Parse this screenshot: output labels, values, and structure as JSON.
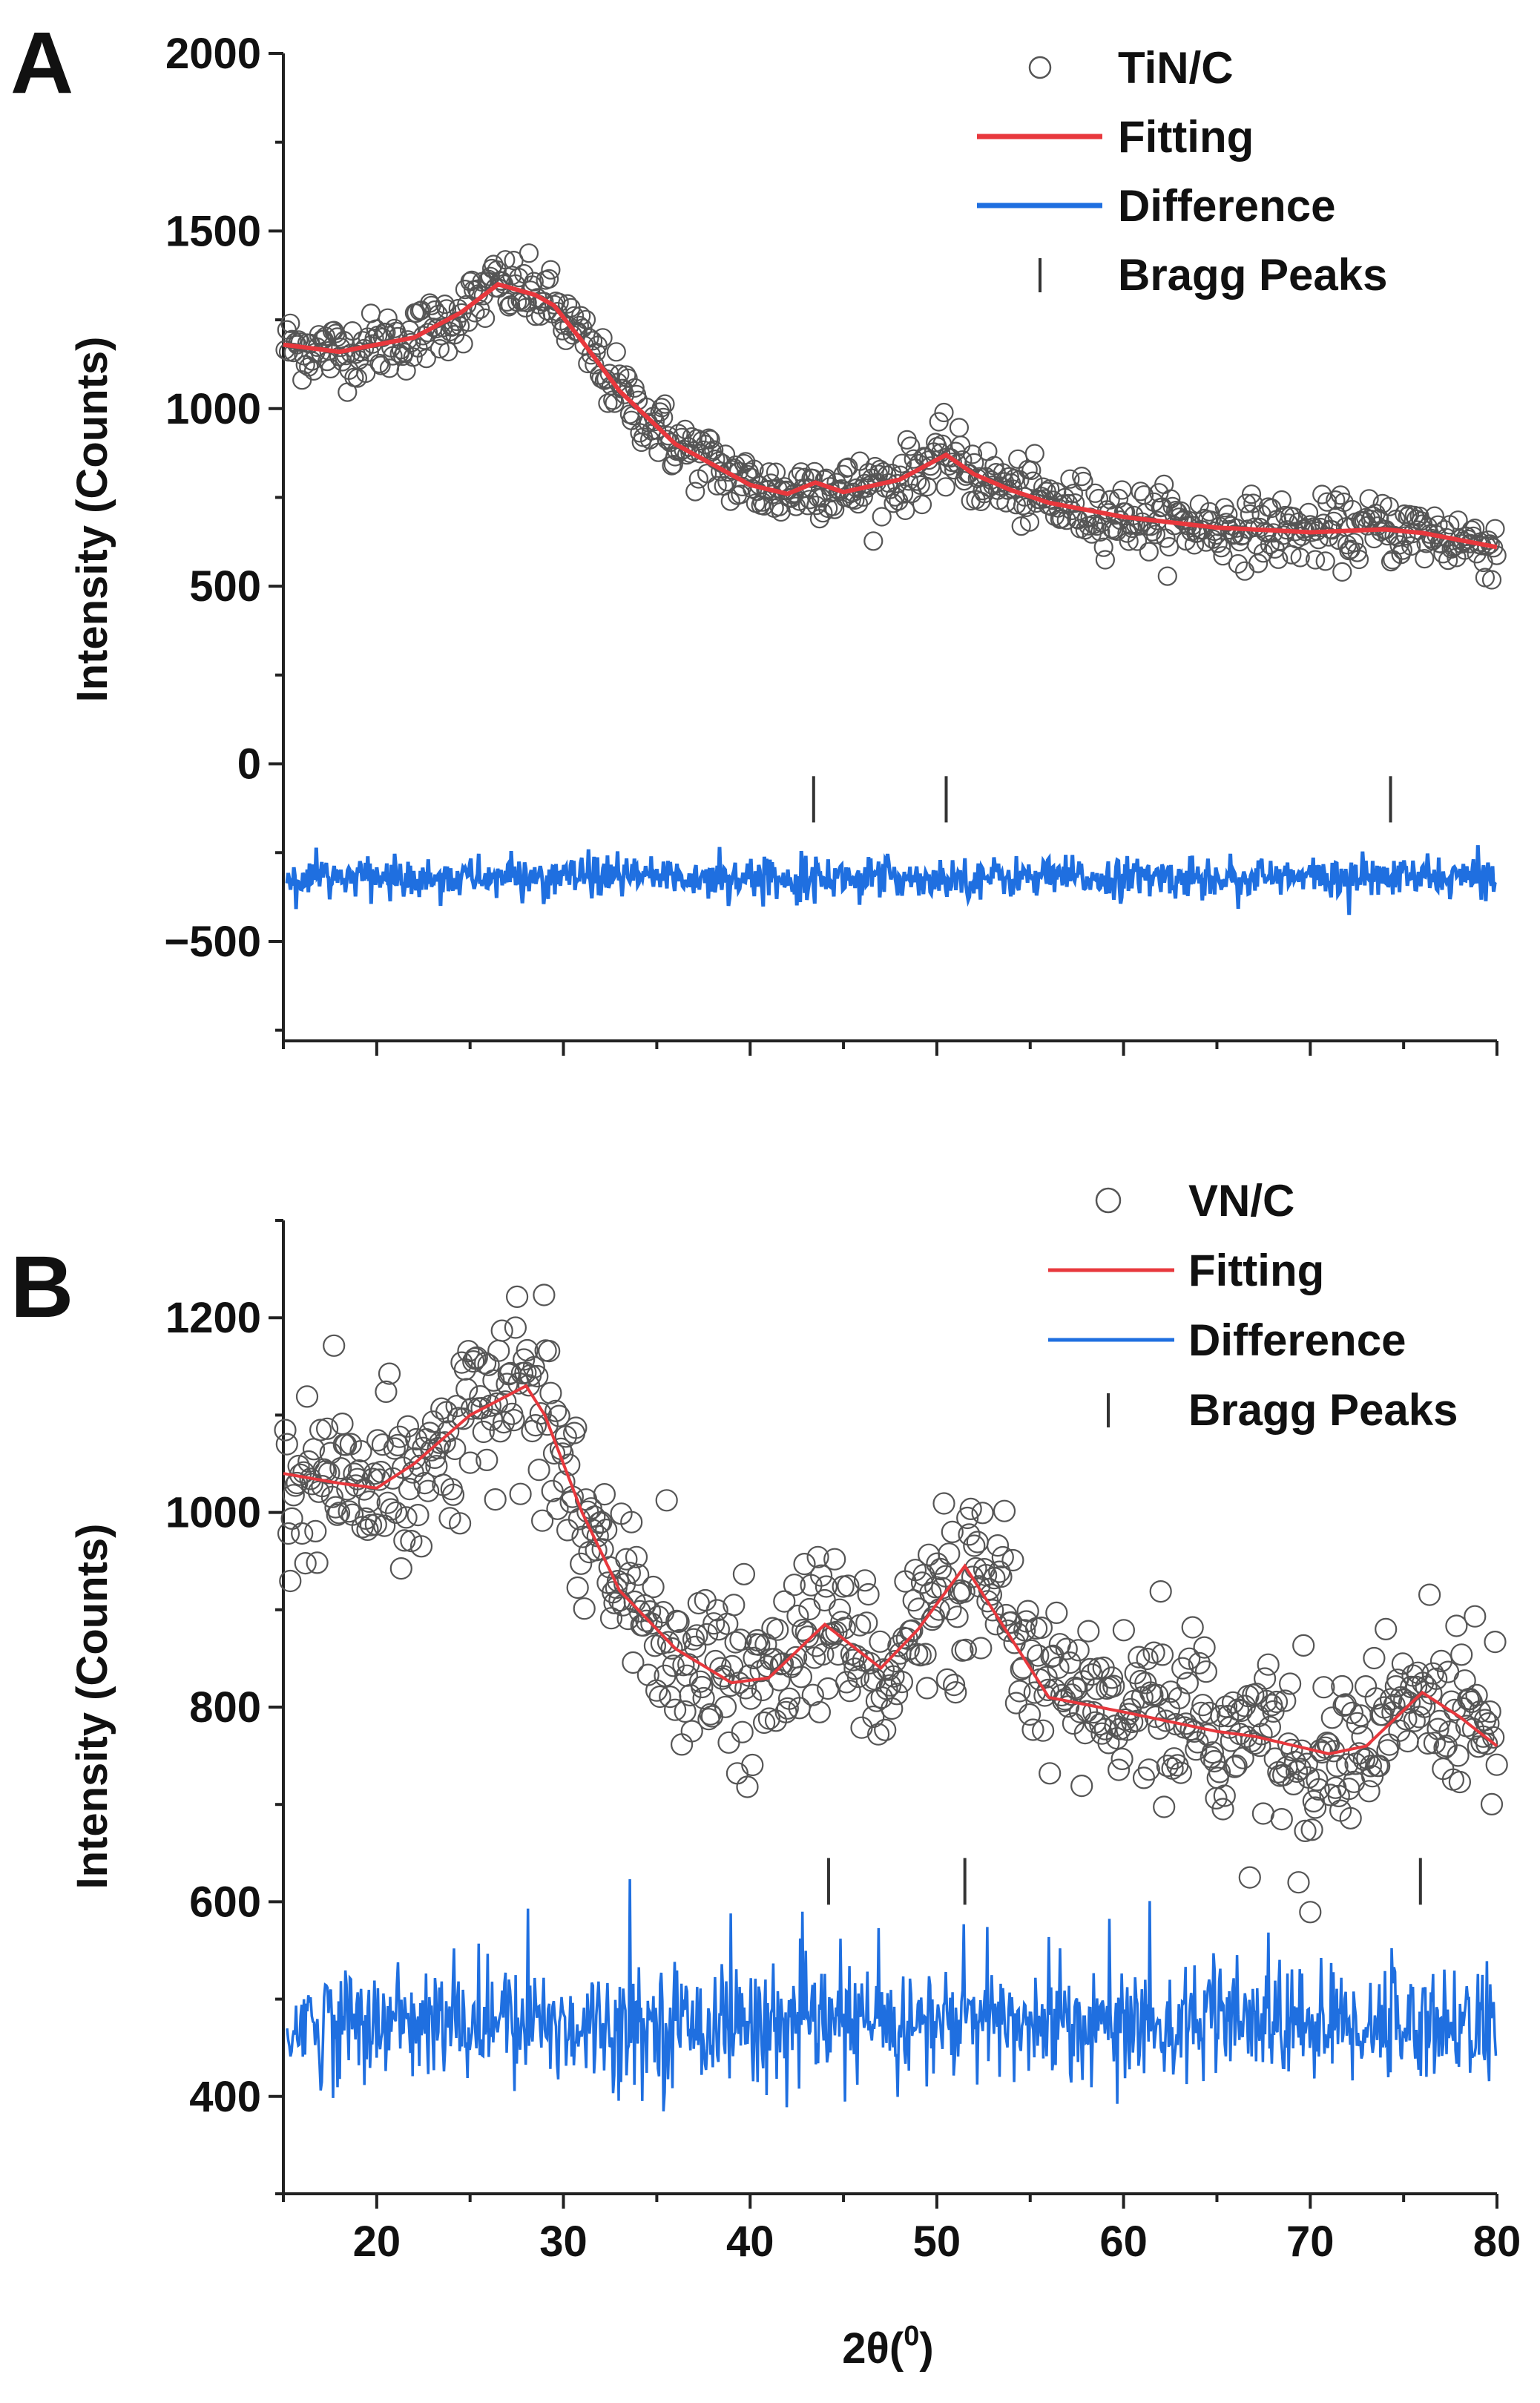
{
  "colors": {
    "observed": "#555555",
    "fitting": "#e8383d",
    "difference": "#1f6fe0",
    "axis": "#222222",
    "bragg": "#333333"
  },
  "chart_data": [
    {
      "type": "scatter",
      "panel_label": "A",
      "ylabel": "Intensity (Counts)",
      "xlabel": "",
      "xlim": [
        15,
        80
      ],
      "ylim": [
        -780,
        2000
      ],
      "x_ticks": [
        20,
        30,
        40,
        50,
        60,
        70,
        80
      ],
      "x_tick_labels_shown": false,
      "y_ticks": [
        -500,
        0,
        500,
        1000,
        1500,
        2000
      ],
      "y_tick_labels": [
        "−500",
        "0",
        "500",
        "1000",
        "1500",
        "2000"
      ],
      "legend": {
        "placement": "top-right",
        "entries": [
          "TiN/C",
          "Fitting",
          "Difference",
          "Bragg Peaks"
        ]
      },
      "series": [
        {
          "name": "TiN/C",
          "kind": "observed-circles",
          "follows": "Fitting",
          "noise_sd": 45
        },
        {
          "name": "Fitting",
          "kind": "line",
          "points": [
            [
              15,
              1180
            ],
            [
              18,
              1160
            ],
            [
              22,
              1200
            ],
            [
              24.5,
              1270
            ],
            [
              26.5,
              1350
            ],
            [
              28.5,
              1320
            ],
            [
              29.5,
              1290
            ],
            [
              31,
              1190
            ],
            [
              33,
              1050
            ],
            [
              36,
              900
            ],
            [
              40,
              785
            ],
            [
              42,
              760
            ],
            [
              43.5,
              792
            ],
            [
              45,
              765
            ],
            [
              48,
              800
            ],
            [
              50.5,
              870
            ],
            [
              52,
              815
            ],
            [
              54,
              770
            ],
            [
              56,
              735
            ],
            [
              60,
              695
            ],
            [
              65,
              665
            ],
            [
              70,
              652
            ],
            [
              74,
              660
            ],
            [
              76,
              650
            ],
            [
              78,
              630
            ],
            [
              80,
              610
            ]
          ]
        },
        {
          "name": "Difference",
          "kind": "line",
          "baseline": -320,
          "noise_sd": 28
        },
        {
          "name": "Bragg Peaks",
          "kind": "ticks",
          "positions": [
            43.4,
            50.5,
            74.3
          ],
          "y_range": [
            -165,
            -35
          ]
        }
      ]
    },
    {
      "type": "scatter",
      "panel_label": "B",
      "ylabel": "Intensity (Counts)",
      "xlabel": "2θ(⁰)",
      "xlabel_main": "2θ(",
      "xlabel_sup": "0",
      "xlabel_close": ")",
      "xlim": [
        15,
        80
      ],
      "ylim": [
        300,
        1300
      ],
      "x_ticks": [
        20,
        30,
        40,
        50,
        60,
        70,
        80
      ],
      "x_tick_labels": [
        "20",
        "30",
        "40",
        "50",
        "60",
        "70",
        "80"
      ],
      "x_tick_labels_shown": true,
      "y_ticks": [
        400,
        600,
        800,
        1000,
        1200
      ],
      "y_tick_labels": [
        "400",
        "600",
        "800",
        "1000",
        "1200"
      ],
      "legend": {
        "placement": "top-right",
        "entries": [
          "VN/C",
          "Fitting",
          "Difference",
          "Bragg Peaks"
        ]
      },
      "series": [
        {
          "name": "VN/C",
          "kind": "observed-circles",
          "follows": "Fitting",
          "noise_sd": 42
        },
        {
          "name": "Fitting",
          "kind": "line",
          "points": [
            [
              15,
              1040
            ],
            [
              18,
              1030
            ],
            [
              20,
              1025
            ],
            [
              22,
              1050
            ],
            [
              25,
              1100
            ],
            [
              28,
              1130
            ],
            [
              29,
              1100
            ],
            [
              31,
              1000
            ],
            [
              33,
              920
            ],
            [
              36,
              860
            ],
            [
              39,
              825
            ],
            [
              41,
              830
            ],
            [
              44,
              885
            ],
            [
              45,
              870
            ],
            [
              47,
              840
            ],
            [
              49,
              880
            ],
            [
              51.5,
              945
            ],
            [
              53,
              900
            ],
            [
              56,
              810
            ],
            [
              60,
              795
            ],
            [
              65,
              775
            ],
            [
              67,
              770
            ],
            [
              71,
              752
            ],
            [
              73,
              760
            ],
            [
              76,
              815
            ],
            [
              78,
              790
            ],
            [
              80,
              760
            ]
          ]
        },
        {
          "name": "Difference",
          "kind": "line",
          "baseline": 475,
          "noise_sd": 30
        },
        {
          "name": "Bragg Peaks",
          "kind": "ticks",
          "positions": [
            44.2,
            51.5,
            75.9
          ],
          "y_range": [
            597,
            645
          ]
        }
      ]
    }
  ]
}
